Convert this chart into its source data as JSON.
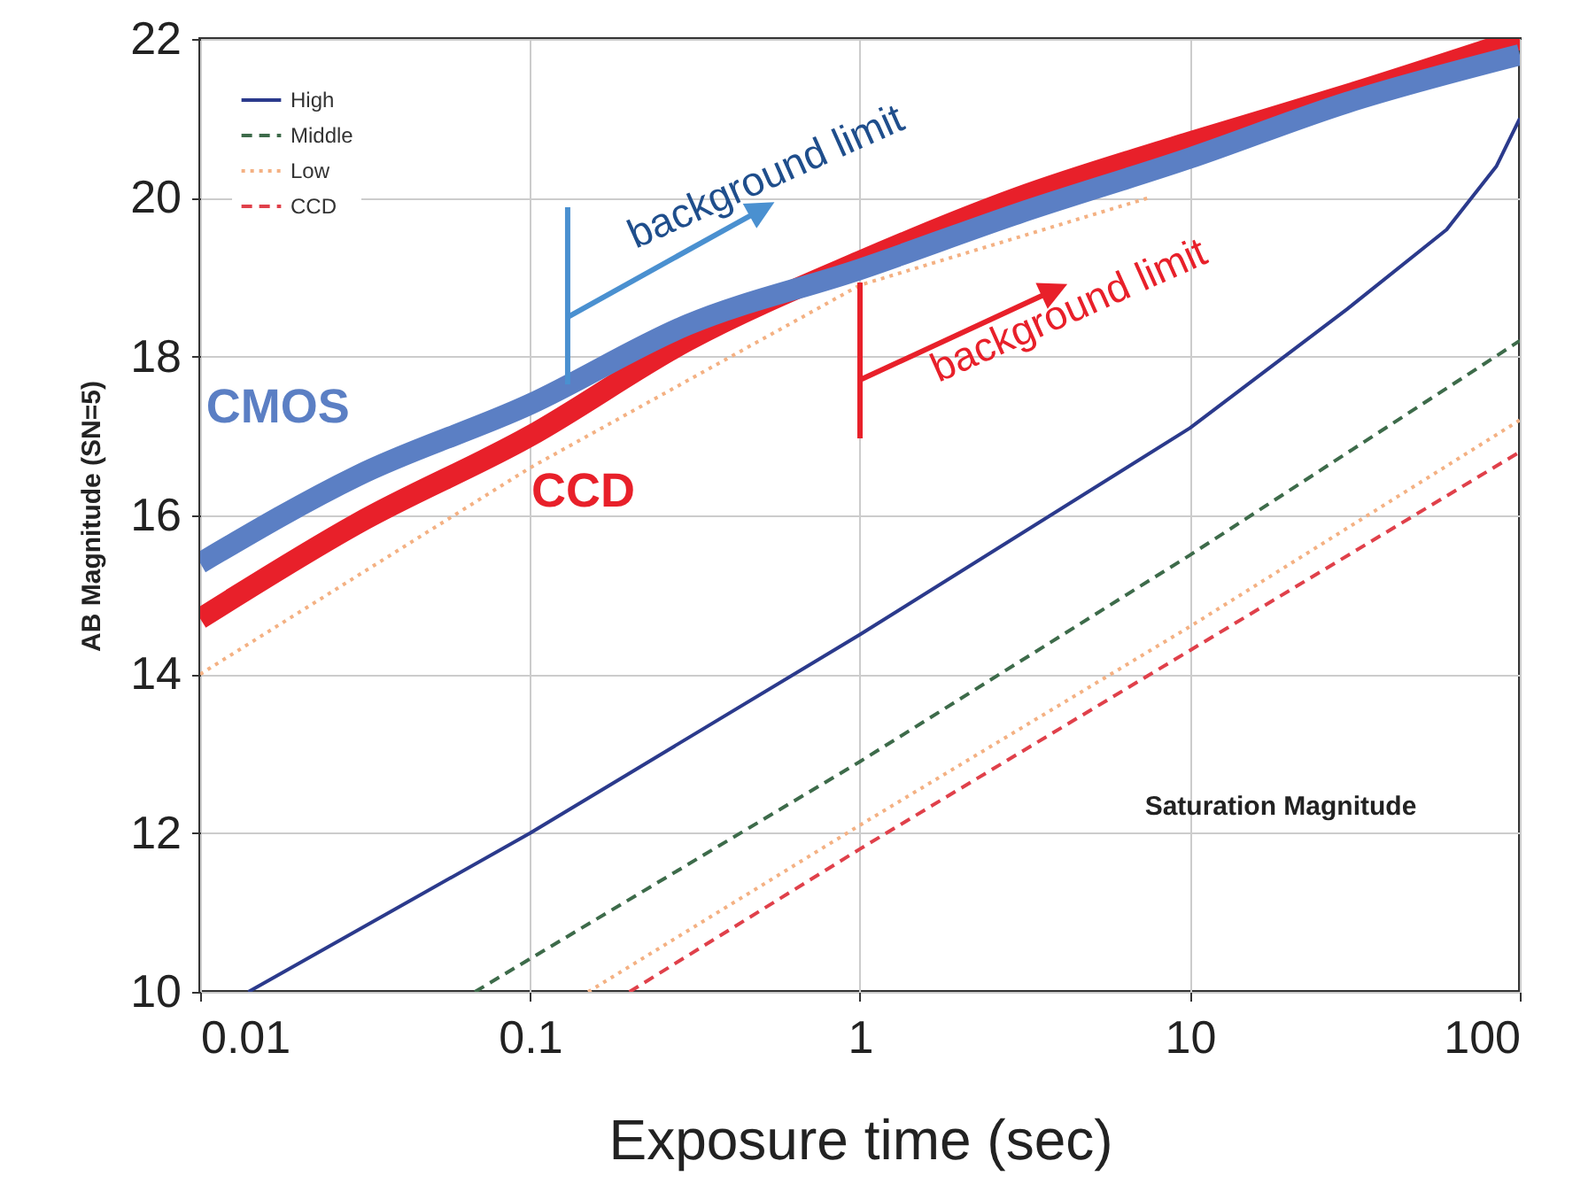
{
  "chart_data": {
    "type": "line",
    "xlabel": "Exposure time (sec)",
    "ylabel": "AB Magnitude (SN=5)",
    "log": "x",
    "grid": true,
    "legend": "top left",
    "xlim": [
      0.01,
      100
    ],
    "xticks": [
      0.01,
      0.1,
      1,
      10,
      100
    ],
    "ylim": [
      10,
      22
    ],
    "yticks": [
      10,
      12,
      14,
      16,
      18,
      20,
      22
    ],
    "series": [
      {
        "name": "High",
        "color": "#2b3a8c",
        "line_style": "solid",
        "x": [
          0.014,
          0.1,
          1,
          10,
          30,
          60,
          85,
          100
        ],
        "values": [
          10.0,
          12.0,
          14.5,
          17.1,
          18.6,
          19.6,
          20.4,
          21.0
        ]
      },
      {
        "name": "Middle",
        "color": "#3d6b4a",
        "line_style": "dashed",
        "x": [
          0.068,
          1,
          10,
          100
        ],
        "values": [
          10.0,
          12.9,
          15.5,
          18.2
        ]
      },
      {
        "name": "Low",
        "color": "#f4b183",
        "line_style": "dotted",
        "x": [
          0.15,
          1,
          10,
          100
        ],
        "values": [
          10.0,
          12.1,
          14.6,
          17.2
        ]
      },
      {
        "name": "CCD",
        "color": "#e0404a",
        "line_style": "dashed",
        "x": [
          0.2,
          1,
          10,
          100
        ],
        "values": [
          10.0,
          11.8,
          14.3,
          16.8
        ]
      },
      {
        "color": "#f4b183",
        "line_style": "dotted",
        "x": [
          0.01,
          0.1,
          1,
          7.5
        ],
        "values": [
          14.0,
          16.6,
          18.9,
          20.0
        ]
      },
      {
        "name": "CCD",
        "color": "#e8202a",
        "x": [
          0.01,
          0.03,
          0.1,
          0.3,
          1,
          3,
          10,
          30,
          100
        ],
        "values": [
          14.7,
          15.9,
          17.0,
          18.2,
          19.2,
          20.0,
          20.7,
          21.3,
          22.0
        ]
      },
      {
        "name": "CMOS",
        "color": "#5b7fc4",
        "x": [
          0.01,
          0.03,
          0.1,
          0.3,
          1,
          3,
          10,
          30,
          100
        ],
        "values": [
          15.4,
          16.5,
          17.4,
          18.4,
          19.1,
          19.8,
          20.5,
          21.2,
          21.8
        ]
      }
    ],
    "annotations": [
      {
        "text": "background limit",
        "x": 0.13,
        "y": 17.65
      },
      {
        "text": "background limit",
        "x": 1,
        "y": 19.2
      },
      "Saturation Magnitude"
    ]
  }
}
